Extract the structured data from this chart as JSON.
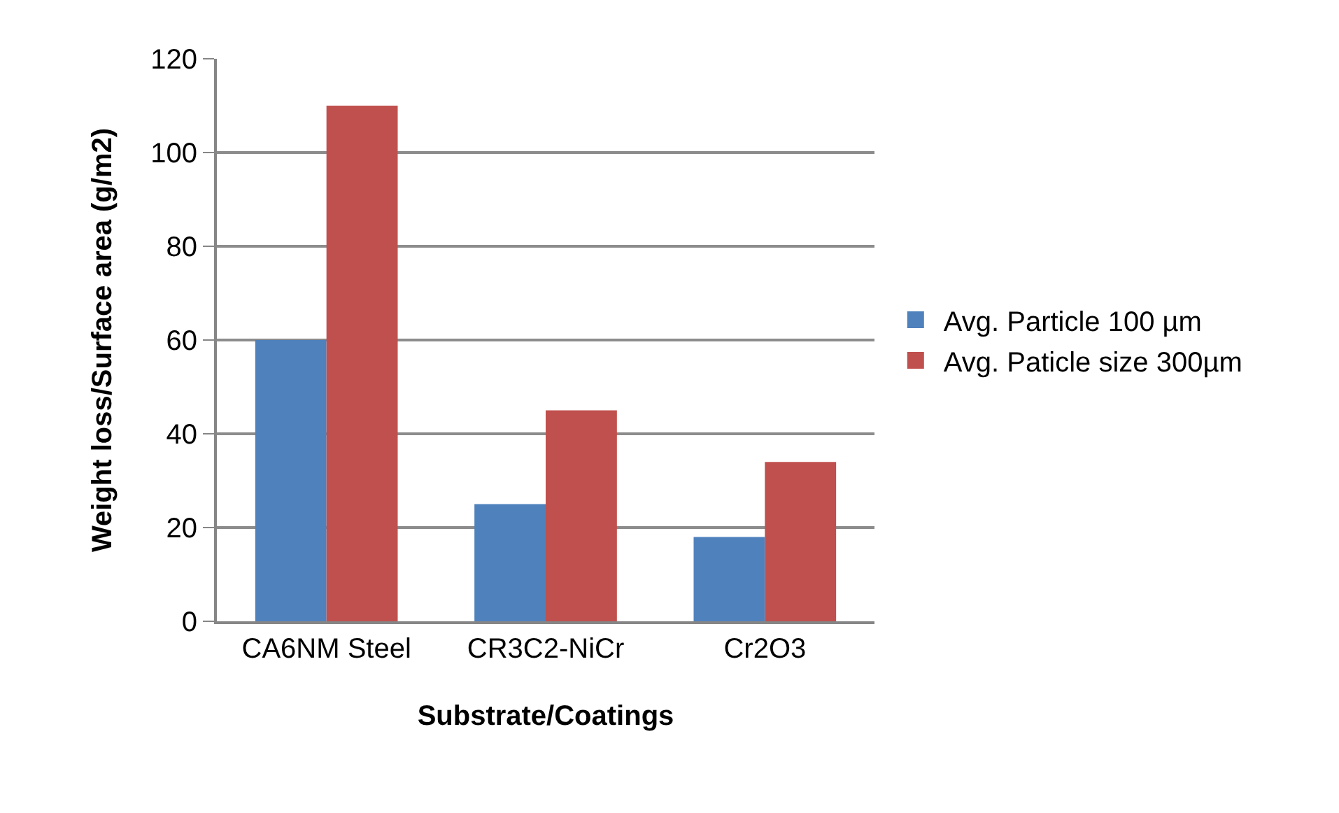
{
  "chart_data": {
    "type": "bar",
    "xlabel": "Substrate/Coatings",
    "ylabel": "Weight loss/Surface area (g/m2)",
    "categories": [
      "CA6NM Steel",
      "CR3C2-NiCr",
      "Cr2O3"
    ],
    "series": [
      {
        "name": "Avg. Particle 100 µm",
        "color": "#4f81bd",
        "values": [
          60,
          25,
          18
        ]
      },
      {
        "name": "Avg. Paticle size 300µm",
        "color": "#c0504d",
        "values": [
          110,
          45,
          34
        ]
      }
    ],
    "ylim": [
      0,
      120
    ],
    "yticks": [
      0,
      20,
      40,
      60,
      80,
      100,
      120
    ],
    "grid": "y",
    "legend": "right"
  }
}
